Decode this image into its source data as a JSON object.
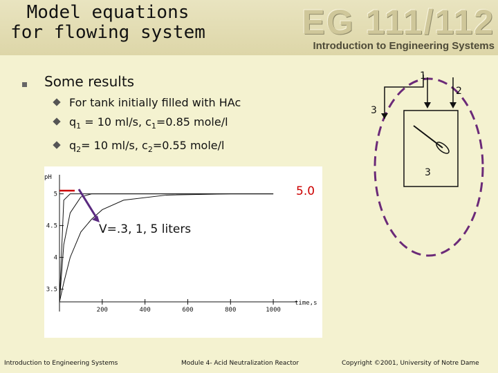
{
  "header": {
    "title_line1": "Model equations",
    "title_line2": "for flowing system",
    "brand_logo": "EG 111/112",
    "brand_subtitle": "Introduction to Engineering Systems"
  },
  "content": {
    "heading": "Some results",
    "bullets": [
      {
        "text": "For tank initially filled with HAc"
      },
      {
        "pre": "q",
        "sub1": "1",
        "mid": " = 10 ml/s, c",
        "sub2": "1",
        "post": "=0.85 mole/l"
      },
      {
        "pre": "q",
        "sub1": "2",
        "mid": "= 10 ml/s, c",
        "sub2": "2",
        "post": "=0.55 mole/l"
      }
    ]
  },
  "diagram": {
    "labels": [
      "1",
      "2",
      "3",
      "3"
    ]
  },
  "annotations": {
    "final_value": "5.0",
    "volumes": "V=.3, 1, 5 liters"
  },
  "colors": {
    "annotation_red": "#cc0000",
    "arrow_purple": "#5a2a80",
    "tank_dashes": "#6b2a78"
  },
  "chart_data": {
    "type": "line",
    "ylabel": "pH",
    "xlabel": "time,s",
    "xlim": [
      0,
      1100
    ],
    "ylim": [
      3.3,
      5.3
    ],
    "x_ticks": [
      "200",
      "400",
      "600",
      "800",
      "1000"
    ],
    "y_ticks": [
      "5",
      "4.5",
      "4",
      "3.5"
    ],
    "series": [
      {
        "x": [
          0,
          20,
          50,
          100,
          150,
          200,
          300,
          500,
          800,
          1000
        ],
        "y": [
          3.3,
          4.9,
          5.0,
          5.0,
          5.0,
          5.0,
          5.0,
          5.0,
          5.0,
          5.0
        ]
      },
      {
        "x": [
          0,
          20,
          50,
          100,
          150,
          200,
          300,
          500,
          800,
          1000
        ],
        "y": [
          3.3,
          4.2,
          4.7,
          4.95,
          5.0,
          5.0,
          5.0,
          5.0,
          5.0,
          5.0
        ]
      },
      {
        "x": [
          0,
          20,
          50,
          100,
          150,
          200,
          300,
          500,
          800,
          1000
        ],
        "y": [
          3.3,
          3.6,
          4.0,
          4.4,
          4.6,
          4.75,
          4.9,
          4.98,
          5.0,
          5.0
        ]
      }
    ]
  },
  "footer": {
    "left": "Introduction to Engineering Systems",
    "center": "Module 4- Acid Neutralization Reactor",
    "right": "Copyright ©2001, University of Notre Dame"
  }
}
